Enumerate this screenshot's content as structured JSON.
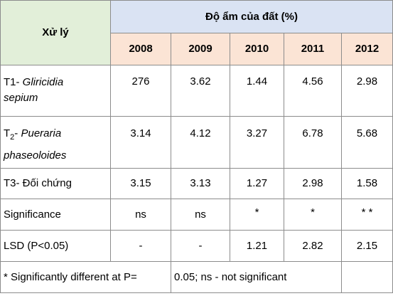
{
  "table": {
    "row_header_label": "Xử lý",
    "group_header": "Độ ẩm của đất (%)",
    "years": [
      "2008",
      "2009",
      "2010",
      "2011",
      "2012"
    ],
    "rows": [
      {
        "label_prefix": "T1- ",
        "label_sub": "",
        "label_italic": "Gliricidia sepium",
        "label_italic_1": "Gliricidia",
        "label_italic_2": "sepium",
        "values": [
          "276",
          "3.62",
          "1.44",
          "4.56",
          "2.98"
        ]
      },
      {
        "label_prefix": "T",
        "label_sub": "2",
        "label_dash": "- ",
        "label_italic": "Pueraria phaseoloides",
        "label_italic_1": "Pueraria",
        "label_italic_2": "phaseoloides",
        "values": [
          "3.14",
          "4.12",
          "3.27",
          "6.78",
          "5.68"
        ]
      },
      {
        "label": "T3- Đối chứng",
        "values": [
          "3.15",
          "3.13",
          "1.27",
          "2.98",
          "1.58"
        ]
      },
      {
        "label": "Significance",
        "values": [
          "ns",
          "ns",
          "*",
          "*",
          "* *"
        ]
      },
      {
        "label": "LSD (P<0.05)",
        "values": [
          "-",
          "-",
          "1.21",
          "2.82",
          "2.15"
        ]
      }
    ],
    "footnote_left": "* Significantly different at P=",
    "footnote_right": "0.05; ns - not significant"
  }
}
